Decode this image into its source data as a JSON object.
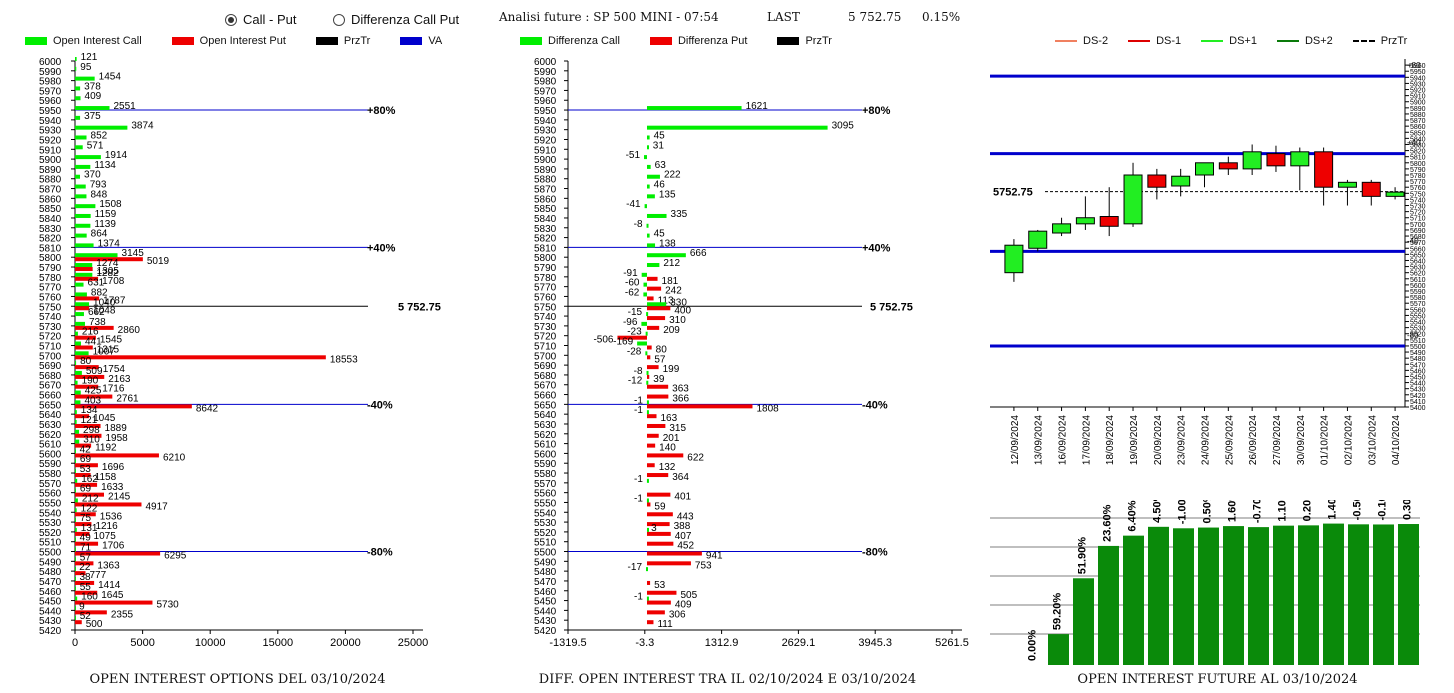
{
  "controls": {
    "mode_options": [
      {
        "label": "Call - Put",
        "selected": true
      },
      {
        "label": "Differenza Call Put",
        "selected": false
      }
    ]
  },
  "header": {
    "analysis_label": "Analisi future : SP 500 MINI - 07:54",
    "last_label": "LAST",
    "last_value": "5 752.75",
    "change": "0.15%"
  },
  "colors": {
    "green": "#00ee00",
    "red": "#ee0000",
    "black": "#000000",
    "blue": "#0000cc",
    "dark_green": "#0a8a0a"
  },
  "legends": {
    "left": [
      {
        "label": "Open Interest Call",
        "color": "#00ee00"
      },
      {
        "label": "Open Interest Put",
        "color": "#ee0000"
      },
      {
        "label": "PrzTr",
        "color": "#000000"
      },
      {
        "label": "VA",
        "color": "#0000cc"
      }
    ],
    "middle": [
      {
        "label": "Differenza Call",
        "color": "#00ee00"
      },
      {
        "label": "Differenza Put",
        "color": "#ee0000"
      },
      {
        "label": "PrzTr",
        "color": "#000000"
      }
    ],
    "right": [
      {
        "label": "DS-2",
        "color": "#f08060",
        "style": "solid"
      },
      {
        "label": "DS-1",
        "color": "#dd0000",
        "style": "solid"
      },
      {
        "label": "DS+1",
        "color": "#22ee22",
        "style": "solid"
      },
      {
        "label": "DS+2",
        "color": "#0a7a0a",
        "style": "solid"
      },
      {
        "label": "PrzTr",
        "color": "#000000",
        "style": "dashed"
      }
    ]
  },
  "chart_data": [
    {
      "type": "bar",
      "title": "OPEN INTEREST OPTIONS DEL 03/10/2024",
      "orientation": "horizontal",
      "strikes": [
        6000,
        5990,
        5980,
        5970,
        5960,
        5950,
        5940,
        5930,
        5920,
        5910,
        5900,
        5890,
        5880,
        5870,
        5860,
        5850,
        5840,
        5830,
        5820,
        5810,
        5800,
        5790,
        5780,
        5770,
        5760,
        5750,
        5740,
        5730,
        5720,
        5710,
        5700,
        5690,
        5680,
        5670,
        5660,
        5650,
        5640,
        5630,
        5620,
        5610,
        5600,
        5590,
        5580,
        5570,
        5560,
        5550,
        5540,
        5530,
        5520,
        5510,
        5500,
        5490,
        5480,
        5470,
        5460,
        5450,
        5440,
        5430
      ],
      "series": [
        {
          "name": "Open Interest Call",
          "values": [
            121,
            95,
            1454,
            378,
            409,
            2551,
            375,
            3874,
            852,
            571,
            1914,
            1134,
            370,
            793,
            848,
            1508,
            1159,
            1139,
            864,
            1374,
            3145,
            1274,
            1282,
            631,
            882,
            1040,
            662,
            738,
            216,
            441,
            1007,
            80,
            509,
            190,
            425,
            403,
            134,
            121,
            298,
            310,
            42,
            69,
            53,
            162,
            69,
            212,
            122,
            75,
            131,
            49,
            71,
            57,
            22,
            38,
            55,
            160,
            9,
            52
          ]
        },
        {
          "name": "Open Interest Put",
          "values": [
            0,
            0,
            0,
            0,
            0,
            0,
            0,
            0,
            0,
            0,
            0,
            0,
            0,
            0,
            0,
            0,
            0,
            0,
            0,
            0,
            5019,
            1305,
            1708,
            0,
            1787,
            1048,
            0,
            2860,
            1545,
            1315,
            18553,
            1754,
            2163,
            1716,
            2761,
            8642,
            1045,
            1889,
            1958,
            1192,
            6210,
            1696,
            1158,
            1633,
            2145,
            4917,
            1536,
            1216,
            1075,
            1706,
            6295,
            1363,
            777,
            1414,
            1645,
            5730,
            2355,
            500
          ]
        }
      ],
      "xlim": [
        0,
        25000
      ],
      "xticks": [
        "0",
        "5000",
        "10000",
        "15000",
        "20000",
        "25000"
      ],
      "yticks": [
        "6000",
        "5990",
        "5980",
        "5970",
        "5960",
        "5950",
        "5940",
        "5930",
        "5920",
        "5910",
        "5900",
        "5890",
        "5880",
        "5870",
        "5860",
        "5850",
        "5840",
        "5830",
        "5820",
        "5810",
        "5800",
        "5790",
        "5780",
        "5770",
        "5760",
        "5750",
        "5740",
        "5730",
        "5720",
        "5710",
        "5700",
        "5690",
        "5680",
        "5670",
        "5660",
        "5650",
        "5640",
        "5630",
        "5620",
        "5610",
        "5600",
        "5590",
        "5580",
        "5570",
        "5560",
        "5550",
        "5540",
        "5530",
        "5520",
        "5510",
        "5500",
        "5490",
        "5480",
        "5470",
        "5460",
        "5450",
        "5440",
        "5430",
        "5420"
      ],
      "reference_lines": [
        {
          "level": 5950,
          "label": "+80%",
          "color": "#0000cc"
        },
        {
          "level": 5810,
          "label": "+40%",
          "color": "#0000cc"
        },
        {
          "level": 5750,
          "label": "5 752.75",
          "color": "#000000"
        },
        {
          "level": 5650,
          "label": "-40%",
          "color": "#0000cc"
        },
        {
          "level": 5500,
          "label": "-80%",
          "color": "#0000cc"
        }
      ]
    },
    {
      "type": "bar",
      "title": "DIFF. OPEN INTEREST TRA IL 02/10/2024 E 03/10/2024",
      "orientation": "horizontal",
      "strikes": [
        5950,
        5930,
        5920,
        5910,
        5900,
        5890,
        5880,
        5870,
        5860,
        5850,
        5840,
        5830,
        5820,
        5810,
        5800,
        5790,
        5780,
        5770,
        5760,
        5750,
        5740,
        5730,
        5720,
        5710,
        5700,
        5690,
        5680,
        5670,
        5660,
        5650,
        5640,
        5630,
        5620,
        5610,
        5600,
        5590,
        5580,
        5570,
        5560,
        5550,
        5540,
        5530,
        5520,
        5510,
        5500,
        5490,
        5480,
        5470,
        5460,
        5450,
        5440,
        5430
      ],
      "series": [
        {
          "name": "Differenza Call",
          "values": [
            1621,
            3095,
            45,
            31,
            -51,
            63,
            222,
            46,
            135,
            -41,
            335,
            -8,
            45,
            138,
            666,
            212,
            -91,
            -60,
            -62,
            330,
            -15,
            -96,
            -23,
            -169,
            -28,
            0,
            -8,
            -12,
            0,
            -1,
            -1,
            0,
            0,
            0,
            0,
            0,
            0,
            -1,
            0,
            -1,
            0,
            0,
            3,
            0,
            0,
            0,
            -17,
            0,
            0,
            -1,
            0,
            0
          ]
        },
        {
          "name": "Differenza Put",
          "values": [
            0,
            0,
            0,
            0,
            0,
            0,
            0,
            0,
            0,
            0,
            0,
            0,
            0,
            0,
            0,
            0,
            181,
            242,
            113,
            400,
            310,
            209,
            -506,
            80,
            57,
            199,
            39,
            363,
            366,
            1808,
            163,
            315,
            201,
            140,
            622,
            132,
            364,
            0,
            401,
            59,
            443,
            388,
            407,
            452,
            941,
            753,
            0,
            53,
            505,
            409,
            306,
            111
          ]
        }
      ],
      "xlim": [
        -1319.5,
        5261.5
      ],
      "xticks": [
        "-1319.5",
        "-3.3",
        "1312.9",
        "2629.1",
        "3945.3",
        "5261.5"
      ],
      "reference_lines": [
        {
          "level": 5950,
          "label": "+80%"
        },
        {
          "level": 5810,
          "label": "+40%"
        },
        {
          "level": 5750,
          "label": "5 752.75"
        },
        {
          "level": 5650,
          "label": "-40%"
        },
        {
          "level": 5500,
          "label": "-80%"
        }
      ]
    },
    {
      "type": "candlestick",
      "title": "",
      "dates": [
        "12/09/2024",
        "13/09/2024",
        "16/09/2024",
        "17/09/2024",
        "18/09/2024",
        "19/09/2024",
        "20/09/2024",
        "23/09/2024",
        "24/09/2024",
        "25/09/2024",
        "26/09/2024",
        "27/09/2024",
        "30/09/2024",
        "01/10/2024",
        "02/10/2024",
        "03/10/2024",
        "04/10/2024"
      ],
      "ohlc": [
        [
          5620,
          5675,
          5605,
          5665
        ],
        [
          5660,
          5690,
          5655,
          5688
        ],
        [
          5685,
          5710,
          5680,
          5700
        ],
        [
          5700,
          5745,
          5690,
          5710
        ],
        [
          5712,
          5760,
          5680,
          5696
        ],
        [
          5700,
          5800,
          5695,
          5780
        ],
        [
          5780,
          5790,
          5740,
          5760
        ],
        [
          5762,
          5790,
          5745,
          5778
        ],
        [
          5780,
          5800,
          5760,
          5800
        ],
        [
          5800,
          5810,
          5780,
          5790
        ],
        [
          5790,
          5830,
          5780,
          5818
        ],
        [
          5815,
          5828,
          5785,
          5795
        ],
        [
          5795,
          5825,
          5755,
          5818
        ],
        [
          5818,
          5825,
          5730,
          5760
        ],
        [
          5760,
          5772,
          5730,
          5768
        ],
        [
          5768,
          5772,
          5730,
          5745
        ],
        [
          5745,
          5760,
          5740,
          5752
        ]
      ],
      "price_label": "5752.75",
      "ylim": [
        5400,
        5970
      ],
      "yticks": [
        5960,
        5950,
        5940,
        5930,
        5920,
        5910,
        5900,
        5890,
        5880,
        5870,
        5860,
        5850,
        5840,
        5830,
        5820,
        5810,
        5800,
        5790,
        5780,
        5770,
        5760,
        5750,
        5740,
        5730,
        5720,
        5710,
        5700,
        5690,
        5680,
        5670,
        5660,
        5650,
        5640,
        5630,
        5620,
        5610,
        5600,
        5590,
        5580,
        5570,
        5560,
        5550,
        5540,
        5530,
        5520,
        5510,
        5500,
        5490,
        5480,
        5470,
        5460,
        5450,
        5440,
        5430,
        5420,
        5410,
        5400
      ],
      "levels": [
        {
          "value": 5942,
          "label": "+80"
        },
        {
          "value": 5815,
          "label": "+40"
        },
        {
          "value": 5655,
          "label": "-40"
        },
        {
          "value": 5500,
          "label": "-80"
        }
      ]
    },
    {
      "type": "bar",
      "title": "OPEN INTEREST FUTURE AL 03/10/2024",
      "categories": [
        "12/09/2024",
        "13/09/2024",
        "16/09/2024",
        "17/09/2024",
        "18/09/2024",
        "19/09/2024",
        "20/09/2024",
        "23/09/2024",
        "24/09/2024",
        "25/09/2024",
        "26/09/2024",
        "27/09/2024",
        "30/09/2024",
        "01/10/2024",
        "02/10/2024",
        "03/10/2024"
      ],
      "values": [
        0,
        21,
        59,
        81,
        88,
        94,
        93,
        93.5,
        94.5,
        93.8,
        94.8,
        95,
        96.2,
        95.7,
        95.6,
        95.9
      ],
      "labels": [
        "0.00%",
        "59.20%",
        "51.90%",
        "23.60%",
        "6.40%",
        "4.50%",
        "-1.00%",
        "0.50%",
        "1.60%",
        "-0.70%",
        "1.10%",
        "0.20%",
        "1.40%",
        "-0.50%",
        "-0.10%",
        "0.30%"
      ],
      "ylim": [
        0,
        100
      ]
    }
  ]
}
